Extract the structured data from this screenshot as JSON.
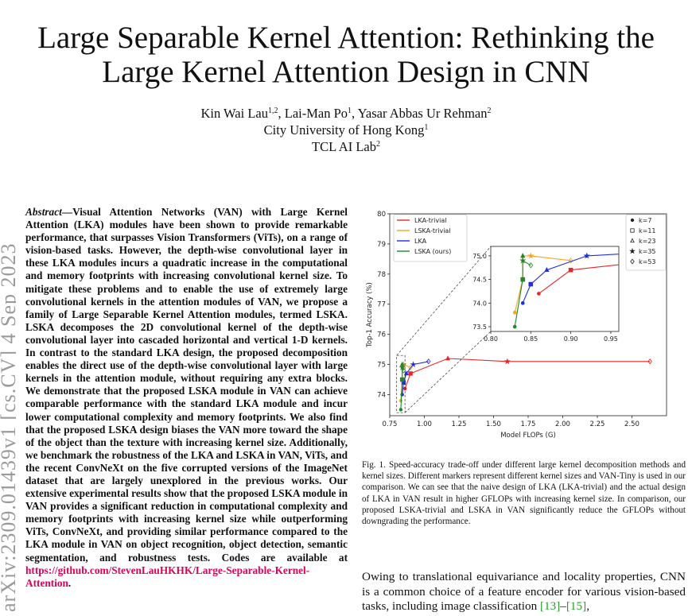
{
  "arxiv_id": "arXiv:2309.01439v1  [cs.CV]  4 Sep 2023",
  "title_line1": "Large Separable Kernel Attention: Rethinking the",
  "title_line2": "Large Kernel Attention Design in CNN",
  "authors": {
    "a1": "Kin Wai Lau",
    "a1_sup": "1,2",
    "a2": ", Lai-Man Po",
    "a2_sup": "1",
    "a3": ", Yasar Abbas Ur Rehman",
    "a3_sup": "2",
    "affil1": "City University of Hong Kong",
    "affil1_sup": "1",
    "affil2": "TCL AI Lab",
    "affil2_sup": "2"
  },
  "abstract": {
    "head": "Abstract",
    "dash": "—",
    "body": "Visual Attention Networks (VAN) with Large Kernel Attention (LKA) modules have been shown to provide remarkable performance, that surpasses Vision Transformers (ViTs), on a range of vision-based tasks. However, the depth-wise convolutional layer in these LKA modules incurs a quadratic increase in the computational and memory footprints with increasing convolutional kernel size. To mitigate these problems and to enable the use of extremely large convolutional kernels in the attention modules of VAN, we propose a family of Large Separable Kernel Attention modules, termed LSKA. LSKA decomposes the 2D convolutional kernel of the depth-wise convolutional layer into cascaded horizontal and vertical 1-D kernels. In contrast to the standard LKA design, the proposed decomposition enables the direct use of the depth-wise convolutional layer with large kernels in the attention module, without requiring any extra blocks. We demonstrate that the proposed LSKA module in VAN can achieve comparable performance with the standard LKA module and incur lower computational complexity and memory footprints. We also find that the proposed LSKA design biases the VAN more toward the shape of the object than the texture with increasing kernel size. Additionally, we benchmark the robustness of the LKA and LSKA in VAN, ViTs, and the recent ConvNeXt on the five corrupted versions of the ImageNet dataset that are largely unexplored in the previous works. Our extensive experimental results show that the proposed LSKA module in VAN provides a significant reduction in computational complexity and memory footprints with increasing kernel size while outperforming ViTs, ConvNeXt, and providing similar performance compared to the LKA module in VAN on object recognition, object detection, semantic segmentation, and robustness tests. Codes are available at ",
    "link": "https://github.com/StevenLauHKHK/Large-Separable-Kernel-Attention",
    "end": "."
  },
  "caption": "Fig. 1.   Speed-accuracy trade-off under different large kernel decomposition methods and kernel sizes. Different markers represent different kernel sizes and VAN-Tiny is used in our comparison. We can see that the naive design of LKA (LKA-trivial) and the actual design of LKA in VAN result in higher GFLOPs with increasing kernel size. In comparison, our proposed LSKA-trivial and LSKA in VAN significantly reduce the GFLOPs without downgrading the performance.",
  "body": {
    "text": "Owing to translational equivariance and locality properties, CNN is a common choice of a feature encoder for various vision-based tasks, including image classification ",
    "cite1": "[13]",
    "dash": "–",
    "cite2": "[15]",
    "end": ","
  },
  "chart_data": {
    "type": "line",
    "xlabel": "Model FLOPs (G)",
    "ylabel": "Top-1 Accuracy (%)",
    "xlim": [
      0.75,
      2.75
    ],
    "ylim": [
      73.3,
      80
    ],
    "xticks": [
      "0.75",
      "1.00",
      "1.25",
      "1.50",
      "1.75",
      "2.00",
      "2.25",
      "2.50"
    ],
    "yticks": [
      "74",
      "75",
      "76",
      "77",
      "78",
      "79",
      "80"
    ],
    "markers_legend": [
      "k=7",
      "k=11",
      "k=23",
      "k=35",
      "k=53"
    ],
    "marker_shapes": [
      "dot",
      "square",
      "triangle",
      "star",
      "diamond"
    ],
    "colors": {
      "lka_trivial": "#e8262a",
      "lska_trivial": "#f5a623",
      "lka": "#1f2ee0",
      "lska": "#1e8a28"
    },
    "series": [
      {
        "name": "LKA-trivial",
        "color": "#e8262a",
        "x": [
          0.86,
          0.9,
          1.17,
          1.6,
          2.63
        ],
        "y": [
          74.2,
          74.7,
          75.2,
          75.1,
          75.1
        ]
      },
      {
        "name": "LSKA-trivial",
        "color": "#f5a623",
        "x": [
          0.83,
          0.84,
          0.84,
          0.85,
          0.9
        ],
        "y": [
          73.8,
          74.5,
          75.0,
          75.0,
          74.9
        ]
      },
      {
        "name": "LKA",
        "color": "#1f2ee0",
        "x": [
          0.84,
          0.85,
          0.87,
          0.92,
          1.03
        ],
        "y": [
          74.0,
          74.4,
          74.7,
          75.0,
          75.1
        ]
      },
      {
        "name": "LSKA (ours)",
        "color": "#1e8a28",
        "x": [
          0.83,
          0.84,
          0.84,
          0.84,
          0.85
        ],
        "y": [
          73.5,
          74.5,
          75.0,
          74.9,
          74.8
        ]
      }
    ],
    "inset": {
      "xlim": [
        0.8,
        0.96
      ],
      "ylim": [
        73.4,
        75.2
      ],
      "xticks": [
        "0.80",
        "0.85",
        "0.90",
        "0.95"
      ],
      "yticks": [
        "73.5",
        "74.0",
        "74.5",
        "75.0"
      ]
    }
  }
}
